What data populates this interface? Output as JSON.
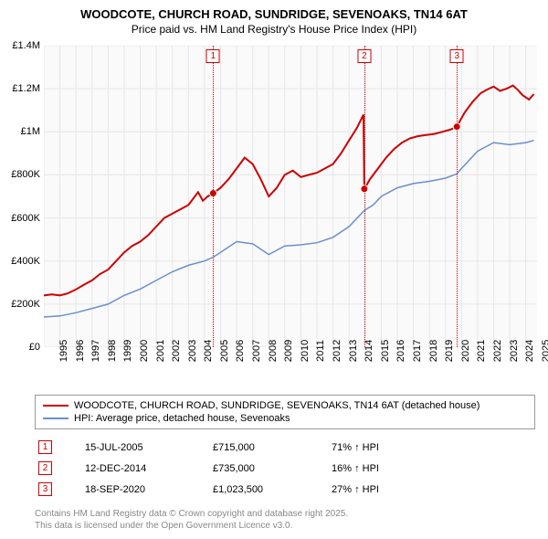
{
  "title": "WOODCOTE, CHURCH ROAD, SUNDRIDGE, SEVENOAKS, TN14 6AT",
  "subtitle": "Price paid vs. HM Land Registry's House Price Index (HPI)",
  "chart": {
    "type": "line",
    "background_color": "#fafafa",
    "grid_color": "#e6e6e6",
    "xlim": [
      1995,
      2025.7
    ],
    "ylim": [
      0,
      1400000
    ],
    "yticks": [
      0,
      200000,
      400000,
      600000,
      800000,
      1000000,
      1200000,
      1400000
    ],
    "ytick_labels": [
      "£0",
      "£200K",
      "£400K",
      "£600K",
      "£800K",
      "£1M",
      "£1.2M",
      "£1.4M"
    ],
    "xticks": [
      1995,
      1996,
      1997,
      1998,
      1999,
      2000,
      2001,
      2002,
      2003,
      2004,
      2005,
      2006,
      2007,
      2008,
      2009,
      2010,
      2011,
      2012,
      2013,
      2014,
      2015,
      2016,
      2017,
      2018,
      2019,
      2020,
      2021,
      2022,
      2023,
      2024,
      2025
    ],
    "label_fontsize": 11,
    "series": [
      {
        "name": "price_paid",
        "color": "#cc0000",
        "width": 2,
        "points": [
          [
            1995.0,
            240000
          ],
          [
            1995.5,
            245000
          ],
          [
            1996.0,
            240000
          ],
          [
            1996.5,
            250000
          ],
          [
            1997.0,
            268000
          ],
          [
            1997.5,
            290000
          ],
          [
            1998.0,
            310000
          ],
          [
            1998.5,
            340000
          ],
          [
            1999.0,
            360000
          ],
          [
            1999.5,
            400000
          ],
          [
            2000.0,
            440000
          ],
          [
            2000.5,
            470000
          ],
          [
            2001.0,
            490000
          ],
          [
            2001.5,
            520000
          ],
          [
            2002.0,
            560000
          ],
          [
            2002.5,
            600000
          ],
          [
            2003.0,
            620000
          ],
          [
            2003.5,
            640000
          ],
          [
            2004.0,
            660000
          ],
          [
            2004.3,
            690000
          ],
          [
            2004.6,
            720000
          ],
          [
            2004.9,
            680000
          ],
          [
            2005.2,
            700000
          ],
          [
            2005.54,
            715000
          ],
          [
            2006.0,
            740000
          ],
          [
            2006.5,
            780000
          ],
          [
            2007.0,
            830000
          ],
          [
            2007.5,
            880000
          ],
          [
            2008.0,
            850000
          ],
          [
            2008.5,
            780000
          ],
          [
            2009.0,
            700000
          ],
          [
            2009.5,
            740000
          ],
          [
            2010.0,
            800000
          ],
          [
            2010.5,
            820000
          ],
          [
            2011.0,
            790000
          ],
          [
            2011.5,
            800000
          ],
          [
            2012.0,
            810000
          ],
          [
            2012.5,
            830000
          ],
          [
            2013.0,
            850000
          ],
          [
            2013.5,
            900000
          ],
          [
            2014.0,
            960000
          ],
          [
            2014.5,
            1020000
          ],
          [
            2014.9,
            1080000
          ],
          [
            2014.95,
            735000
          ],
          [
            2015.3,
            780000
          ],
          [
            2015.8,
            830000
          ],
          [
            2016.3,
            880000
          ],
          [
            2016.8,
            920000
          ],
          [
            2017.3,
            950000
          ],
          [
            2017.8,
            970000
          ],
          [
            2018.3,
            980000
          ],
          [
            2018.8,
            985000
          ],
          [
            2019.3,
            990000
          ],
          [
            2019.8,
            1000000
          ],
          [
            2020.3,
            1010000
          ],
          [
            2020.71,
            1023500
          ],
          [
            2020.75,
            1030000
          ],
          [
            2021.2,
            1090000
          ],
          [
            2021.7,
            1140000
          ],
          [
            2022.2,
            1180000
          ],
          [
            2022.7,
            1200000
          ],
          [
            2023.0,
            1210000
          ],
          [
            2023.4,
            1190000
          ],
          [
            2023.8,
            1200000
          ],
          [
            2024.2,
            1215000
          ],
          [
            2024.5,
            1195000
          ],
          [
            2024.8,
            1170000
          ],
          [
            2025.2,
            1150000
          ],
          [
            2025.5,
            1175000
          ]
        ]
      },
      {
        "name": "hpi",
        "color": "#6a8fd0",
        "width": 1.5,
        "points": [
          [
            1995.0,
            140000
          ],
          [
            1996.0,
            145000
          ],
          [
            1997.0,
            160000
          ],
          [
            1998.0,
            180000
          ],
          [
            1999.0,
            200000
          ],
          [
            2000.0,
            240000
          ],
          [
            2001.0,
            270000
          ],
          [
            2002.0,
            310000
          ],
          [
            2003.0,
            350000
          ],
          [
            2004.0,
            380000
          ],
          [
            2005.0,
            400000
          ],
          [
            2005.54,
            418000
          ],
          [
            2006.0,
            440000
          ],
          [
            2007.0,
            490000
          ],
          [
            2008.0,
            480000
          ],
          [
            2009.0,
            430000
          ],
          [
            2010.0,
            470000
          ],
          [
            2011.0,
            475000
          ],
          [
            2012.0,
            485000
          ],
          [
            2013.0,
            510000
          ],
          [
            2014.0,
            560000
          ],
          [
            2014.95,
            635000
          ],
          [
            2015.5,
            660000
          ],
          [
            2016.0,
            700000
          ],
          [
            2017.0,
            740000
          ],
          [
            2018.0,
            760000
          ],
          [
            2019.0,
            770000
          ],
          [
            2020.0,
            785000
          ],
          [
            2020.71,
            805000
          ],
          [
            2021.0,
            830000
          ],
          [
            2022.0,
            910000
          ],
          [
            2023.0,
            950000
          ],
          [
            2024.0,
            940000
          ],
          [
            2025.0,
            950000
          ],
          [
            2025.5,
            960000
          ]
        ]
      }
    ],
    "price_markers": [
      {
        "x": 2005.54,
        "y": 715000
      },
      {
        "x": 2014.95,
        "y": 735000
      },
      {
        "x": 2020.71,
        "y": 1023500
      }
    ],
    "vlines": [
      {
        "num": "1",
        "x": 2005.54,
        "color": "#cc0000"
      },
      {
        "num": "2",
        "x": 2014.95,
        "color": "#cc0000"
      },
      {
        "num": "3",
        "x": 2020.71,
        "color": "#cc0000"
      }
    ]
  },
  "legend": {
    "items": [
      {
        "color": "#cc0000",
        "label": "WOODCOTE, CHURCH ROAD, SUNDRIDGE, SEVENOAKS, TN14 6AT (detached house)"
      },
      {
        "color": "#6a8fd0",
        "label": "HPI: Average price, detached house, Sevenoaks"
      }
    ]
  },
  "markers_table": [
    {
      "num": "1",
      "color": "#cc0000",
      "date": "15-JUL-2005",
      "price": "£715,000",
      "pct": "71% ↑ HPI"
    },
    {
      "num": "2",
      "color": "#cc0000",
      "date": "12-DEC-2014",
      "price": "£735,000",
      "pct": "16% ↑ HPI"
    },
    {
      "num": "3",
      "color": "#cc0000",
      "date": "18-SEP-2020",
      "price": "£1,023,500",
      "pct": "27% ↑ HPI"
    }
  ],
  "footnote_line1": "Contains HM Land Registry data © Crown copyright and database right 2025.",
  "footnote_line2": "This data is licensed under the Open Government Licence v3.0."
}
